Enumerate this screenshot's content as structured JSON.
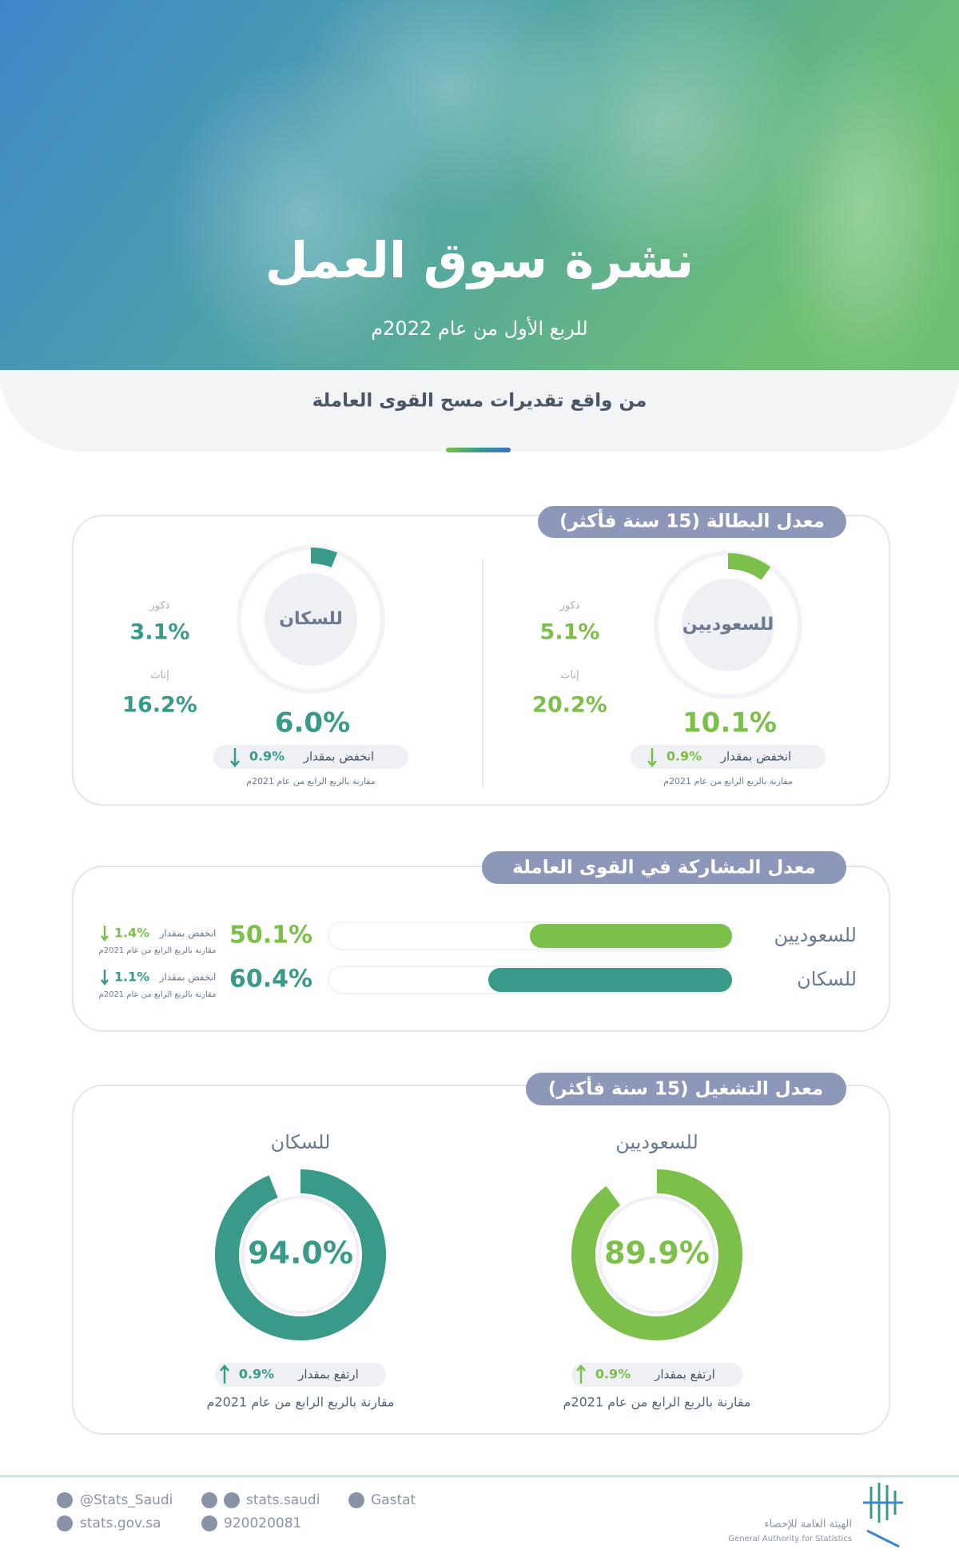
{
  "header": {
    "title": "نشرة سوق العمل",
    "subtitle": "للربع الأول من عام 2022م",
    "tagline": "من واقع تقديرات مسح القوى العاملة"
  },
  "unemployment": {
    "title": "معدل البطالة (15 سنة فأكثر)",
    "groups": [
      {
        "name": "للسعوديين",
        "color": "#7cbf4a",
        "value": 10.1,
        "value_label": "10.1%",
        "males_label": "ذكور",
        "males": "5.1%",
        "females_label": "إناث",
        "females": "20.2%",
        "change_label": "انخفض بمقدار",
        "change": "0.9%",
        "comparison": "مقارنة بالربع الرابع من عام 2021م"
      },
      {
        "name": "للسكان",
        "color": "#3a9a89",
        "value": 6.0,
        "value_label": "6.0%",
        "males_label": "ذكور",
        "males": "3.1%",
        "females_label": "إناث",
        "females": "16.2%",
        "change_label": "انخفض بمقدار",
        "change": "0.9%",
        "comparison": "مقارنة بالربع الرابع من عام 2021م"
      }
    ]
  },
  "participation": {
    "title": "معدل المشاركة في القوى العاملة",
    "groups": [
      {
        "name": "للسعوديين",
        "color": "#7cbf4a",
        "value": 50.1,
        "value_label": "50.1%",
        "change_label": "انخفض بمقدار",
        "change": "1.4%",
        "comparison": "مقارنة بالربع الرابع من عام 2021م"
      },
      {
        "name": "للسكان",
        "color": "#3a9a89",
        "value": 60.4,
        "value_label": "60.4%",
        "change_label": "انخفض بمقدار",
        "change": "1.1%",
        "comparison": "مقارنة بالربع الرابع من عام 2021م"
      }
    ]
  },
  "employment": {
    "title": "معدل التشغيل (15 سنة فأكثر)",
    "groups": [
      {
        "name": "للسعوديين",
        "color": "#7cbf4a",
        "value": 89.9,
        "value_label": "89.9%",
        "change_label": "ارتفع بمقدار",
        "change": "0.9%",
        "comparison": "مقارنة بالربع الرابع من عام 2021م"
      },
      {
        "name": "للسكان",
        "color": "#3a9a89",
        "value": 94.0,
        "value_label": "94.0%",
        "change_label": "ارتفع بمقدار",
        "change": "0.9%",
        "comparison": "مقارنة بالربع الرابع من عام 2021م"
      }
    ]
  },
  "footer": {
    "twitter": "@Stats_Saudi",
    "website": "stats.gov.sa",
    "social": "stats.saudi",
    "phone": "920020081",
    "linkedin": "Gastat",
    "org_ar": "الهيئة العامة للإحصاء",
    "org_en": "General Authority for Statistics"
  }
}
